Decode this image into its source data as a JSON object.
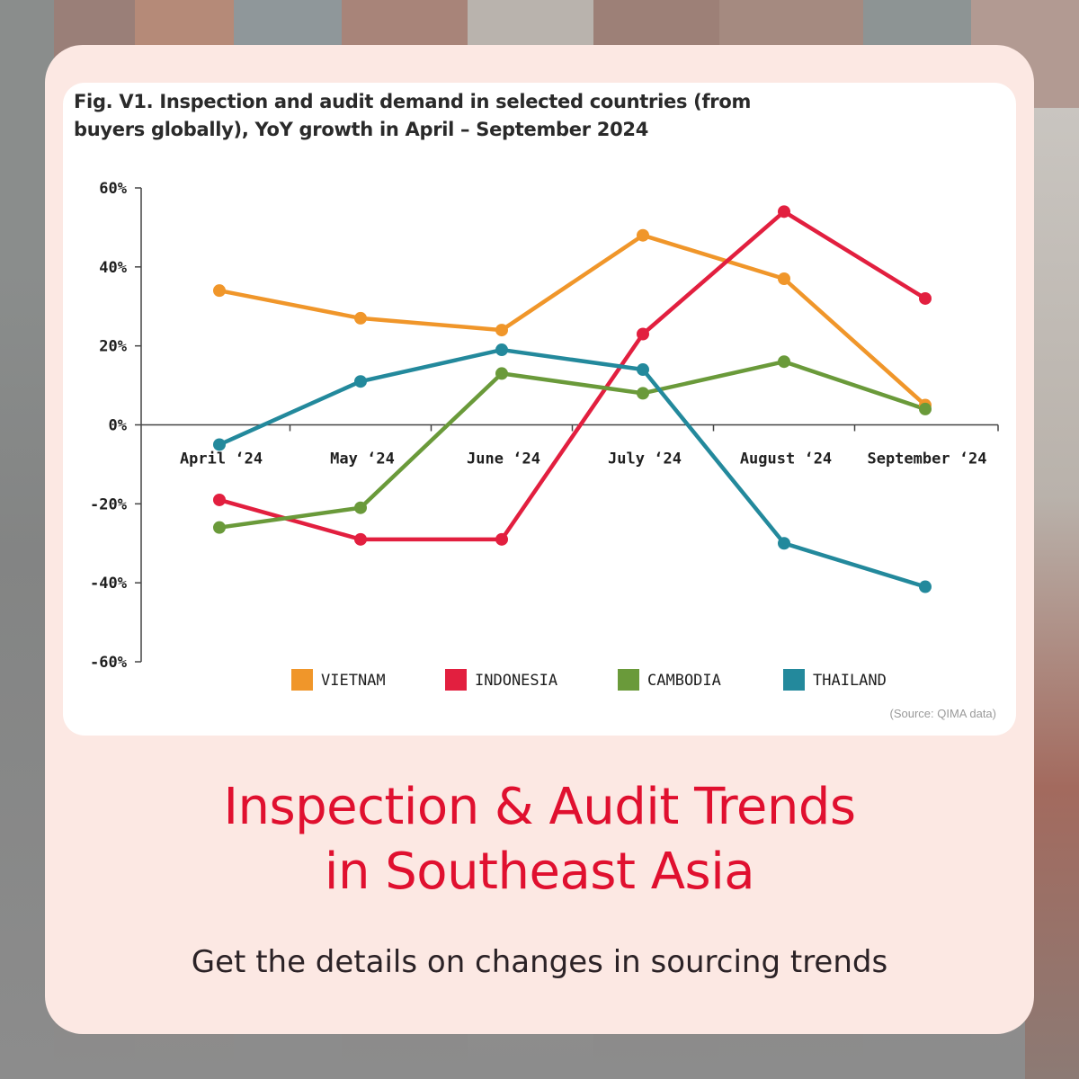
{
  "chart_data": {
    "type": "line",
    "title": "Fig. V1. Inspection and audit demand in selected countries (from buyers globally), YoY growth in April – September 2024",
    "categories": [
      "April ‘24",
      "May ‘24",
      "June ‘24",
      "July ‘24",
      "August ‘24",
      "September ‘24"
    ],
    "y_ticks": [
      "60%",
      "40%",
      "20%",
      "0%",
      "-20%",
      "-40%",
      "-60%"
    ],
    "ylim": [
      -60,
      60
    ],
    "y_unit": "%",
    "grid": false,
    "legend_position": "bottom",
    "series": [
      {
        "name": "VIETNAM",
        "color": "#f0962a",
        "values": [
          34,
          27,
          24,
          48,
          37,
          5
        ]
      },
      {
        "name": "INDONESIA",
        "color": "#e21f3f",
        "values": [
          -19,
          -29,
          -29,
          23,
          54,
          32
        ]
      },
      {
        "name": "CAMBODIA",
        "color": "#6a9a3a",
        "values": [
          -26,
          -21,
          13,
          8,
          16,
          4
        ]
      },
      {
        "name": "THAILAND",
        "color": "#23899c",
        "values": [
          -5,
          11,
          19,
          14,
          -30,
          -41
        ]
      }
    ],
    "source": "(Source: QIMA data)"
  },
  "headline": {
    "line1": "Inspection & Audit Trends",
    "line2": "in Southeast Asia"
  },
  "subheadline": "Get the details on changes in sourcing trends",
  "colors": {
    "card_background": "#fce8e3",
    "headline": "#e0102f"
  }
}
